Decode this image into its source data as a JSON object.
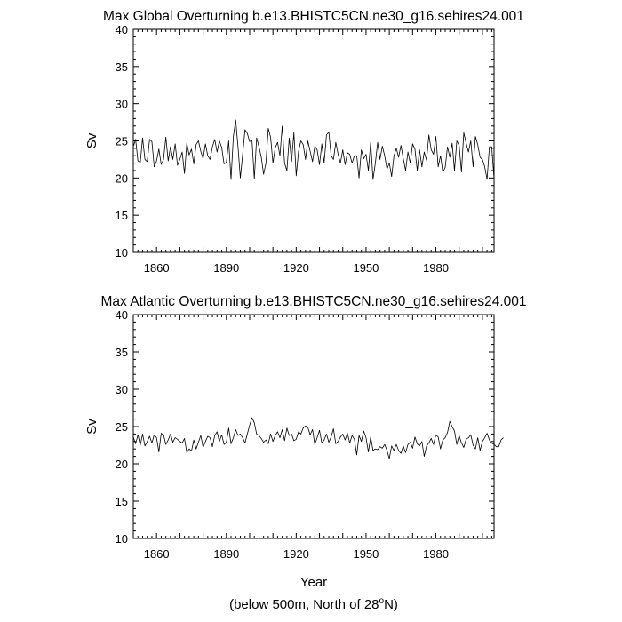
{
  "figure": {
    "footnote_prefix": "(below 500m, North of 28",
    "footnote_sup": "o",
    "footnote_suffix": "N)"
  },
  "chart_data": [
    {
      "type": "line",
      "title": "Max Global Overturning b.e13.BHISTC5CN.ne30_g16.sehires24.001",
      "xlabel": "",
      "ylabel": "Sv",
      "xlim": [
        1850,
        2005
      ],
      "ylim": [
        10,
        40
      ],
      "x_ticks": [
        1860,
        1890,
        1920,
        1950,
        1980
      ],
      "y_ticks": [
        10,
        15,
        20,
        25,
        30,
        35,
        40
      ],
      "grid": false,
      "series": [
        {
          "color": "#000000",
          "x_start": 1850,
          "x_step": 1,
          "values": [
            24.2,
            25.2,
            22.3,
            22.1,
            25.4,
            22.5,
            22.2,
            25.2,
            24.9,
            21.5,
            22.3,
            23.9,
            21.8,
            22.5,
            25.5,
            22.3,
            24.2,
            22.5,
            24.6,
            21.7,
            22.5,
            23.5,
            20.6,
            24.7,
            23.1,
            23.9,
            21.9,
            24.5,
            25.0,
            23.6,
            22.6,
            24.6,
            23.0,
            22.5,
            24.2,
            25.2,
            23.5,
            25.0,
            24.1,
            21.9,
            22.1,
            25.0,
            19.8,
            25.6,
            27.8,
            24.2,
            20.0,
            23.2,
            26.5,
            26.0,
            24.9,
            25.1,
            19.9,
            25.4,
            24.2,
            22.8,
            20.5,
            22.0,
            26.7,
            25.5,
            22.0,
            24.1,
            24.8,
            23.0,
            27.0,
            22.0,
            21.0,
            25.4,
            22.2,
            26.1,
            20.3,
            23.6,
            25.0,
            24.5,
            22.5,
            25.0,
            23.6,
            22.2,
            24.3,
            23.8,
            21.8,
            24.6,
            22.0,
            25.8,
            26.2,
            23.0,
            22.5,
            24.8,
            23.2,
            22.0,
            23.8,
            21.8,
            23.4,
            23.2,
            22.0,
            23.0,
            23.0,
            20.0,
            23.8,
            22.6,
            23.2,
            21.0,
            24.8,
            19.8,
            22.0,
            24.8,
            22.5,
            24.3,
            23.0,
            21.2,
            22.0,
            20.2,
            23.0,
            24.0,
            22.8,
            24.4,
            22.6,
            21.0,
            23.5,
            22.0,
            24.6,
            23.9,
            21.0,
            23.8,
            21.5,
            23.5,
            22.4,
            25.8,
            23.8,
            23.2,
            25.6,
            21.5,
            23.0,
            20.8,
            21.4,
            24.2,
            22.8,
            24.7,
            21.0,
            25.0,
            24.4,
            20.8,
            26.1,
            24.7,
            23.5,
            25.0,
            21.5,
            25.6,
            24.5,
            22.8,
            22.5,
            21.5,
            19.8,
            24.2,
            24.2,
            19.9
          ]
        }
      ]
    },
    {
      "type": "line",
      "title": "Max Atlantic Overturning b.e13.BHISTC5CN.ne30_g16.sehires24.001",
      "xlabel": "Year",
      "ylabel": "Sv",
      "xlim": [
        1850,
        2005
      ],
      "ylim": [
        10,
        40
      ],
      "x_ticks": [
        1860,
        1890,
        1920,
        1950,
        1980
      ],
      "y_ticks": [
        10,
        15,
        20,
        25,
        30,
        35,
        40
      ],
      "grid": false,
      "series": [
        {
          "color": "#000000",
          "x_start": 1850,
          "x_step": 1,
          "values": [
            23.6,
            22.7,
            23.9,
            22.5,
            24.0,
            22.4,
            23.0,
            23.7,
            22.8,
            23.9,
            23.5,
            21.6,
            24.1,
            23.9,
            22.6,
            23.2,
            24.0,
            22.9,
            23.5,
            23.3,
            23.0,
            22.8,
            23.4,
            21.5,
            22.0,
            21.7,
            23.2,
            22.0,
            22.9,
            23.8,
            22.2,
            23.0,
            23.7,
            23.5,
            22.3,
            23.8,
            24.3,
            23.0,
            23.9,
            22.6,
            22.9,
            24.8,
            22.7,
            23.5,
            24.6,
            23.8,
            24.0,
            23.5,
            22.8,
            24.0,
            25.2,
            26.2,
            25.5,
            24.0,
            23.8,
            23.4,
            22.9,
            23.2,
            22.7,
            24.0,
            23.0,
            23.8,
            24.3,
            23.5,
            24.6,
            23.1,
            24.8,
            23.8,
            24.0,
            23.1,
            23.3,
            24.3,
            24.0,
            24.8,
            25.1,
            24.9,
            23.9,
            24.6,
            22.6,
            23.5,
            24.5,
            22.8,
            23.2,
            24.0,
            22.9,
            23.6,
            24.7,
            22.7,
            23.0,
            23.6,
            24.0,
            23.2,
            24.1,
            22.8,
            23.8,
            23.3,
            21.2,
            23.8,
            23.0,
            24.4,
            23.5,
            21.6,
            23.6,
            21.8,
            22.0,
            21.9,
            22.3,
            22.1,
            22.6,
            21.8,
            20.7,
            22.4,
            21.8,
            22.6,
            21.8,
            21.4,
            22.4,
            21.5,
            22.6,
            22.9,
            22.1,
            23.6,
            22.7,
            22.4,
            23.0,
            21.0,
            22.4,
            22.8,
            23.4,
            22.6,
            23.9,
            23.6,
            22.0,
            23.2,
            23.5,
            24.2,
            25.7,
            25.0,
            24.4,
            22.6,
            23.8,
            22.8,
            22.2,
            23.3,
            23.5,
            23.9,
            22.5,
            22.0,
            23.5,
            21.8,
            23.0,
            23.5,
            24.1,
            23.2,
            22.8,
            22.6,
            22.3,
            22.3,
            23.2,
            23.5
          ]
        }
      ]
    }
  ]
}
